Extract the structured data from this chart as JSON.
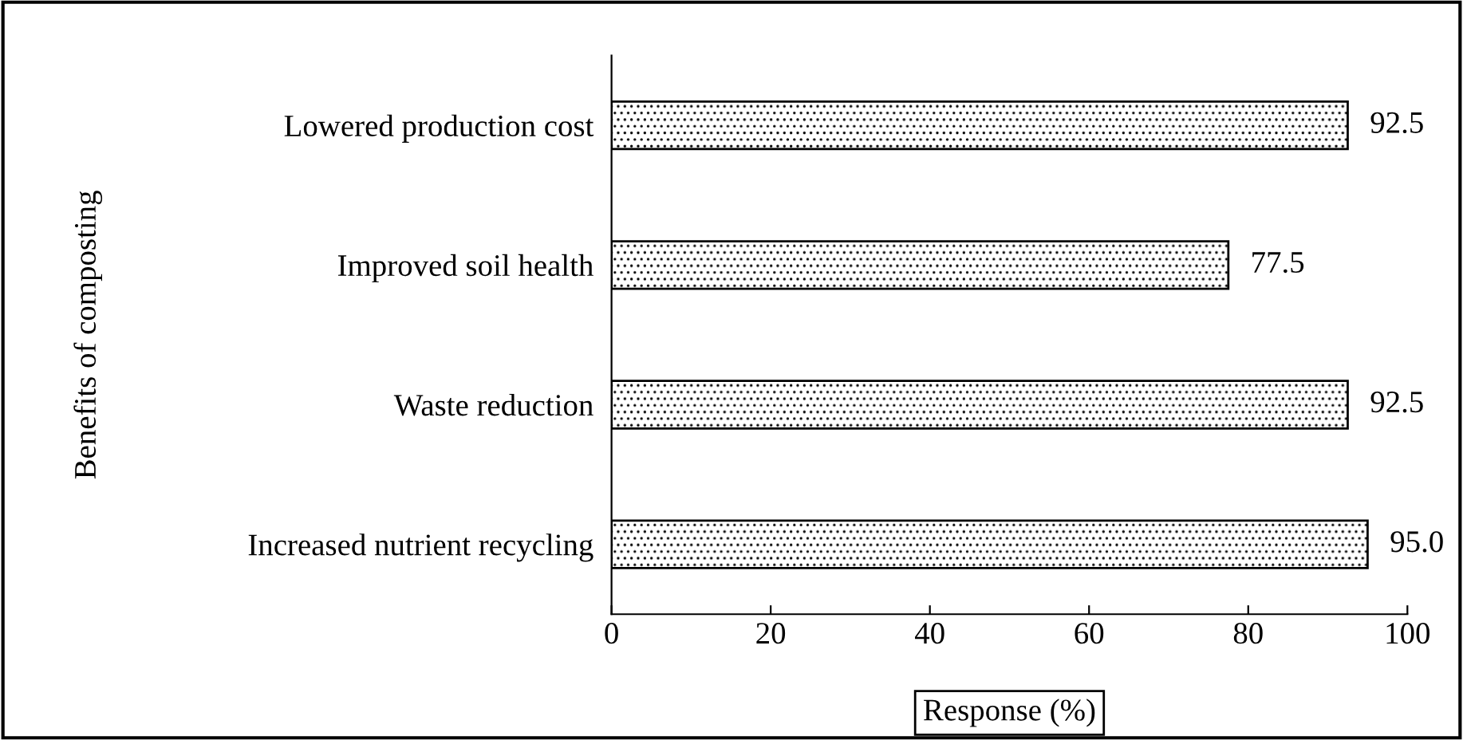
{
  "chart_data": {
    "type": "bar",
    "orientation": "horizontal",
    "categories": [
      "Lowered production cost",
      "Improved soil health",
      "Waste reduction",
      "Increased nutrient recycling"
    ],
    "values": [
      92.5,
      77.5,
      92.5,
      95.0
    ],
    "value_labels": [
      "92.5",
      "77.5",
      "92.5",
      "95.0"
    ],
    "color": "#000000",
    "xlabel": "Response (%)",
    "ylabel": "Benefits of composting",
    "xlim": [
      0,
      100
    ],
    "xticks": [
      0,
      20,
      40,
      60,
      80,
      100
    ],
    "grid": false,
    "legend": false
  }
}
